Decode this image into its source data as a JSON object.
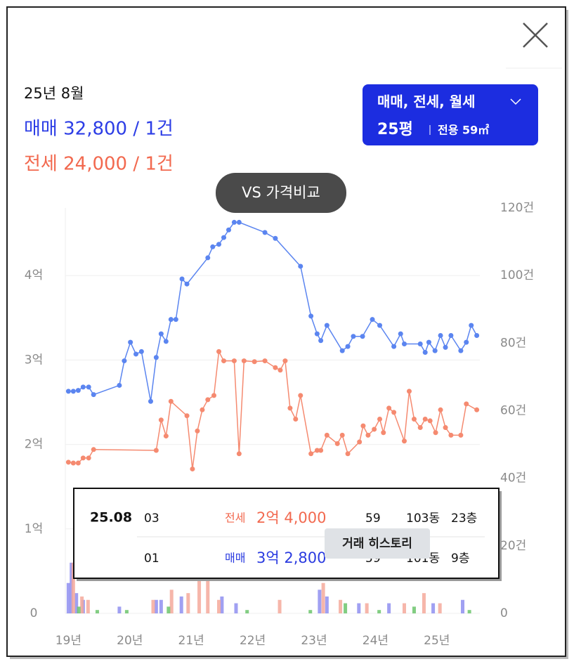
{
  "header": {
    "date": "25년 8월",
    "sale": "매매 32,800 / 1건",
    "jeonse": "전세 24,000 / 1건"
  },
  "filter": {
    "types": "매매, 전세, 월세",
    "size": "25평",
    "area": "전용 59㎡"
  },
  "compare_button": "VS 가격비교",
  "chart_data": {
    "type": "line",
    "xlim": [
      2018.95,
      2025.7
    ],
    "xticks": [
      {
        "value": 2019,
        "label": "19년"
      },
      {
        "value": 2020,
        "label": "20년"
      },
      {
        "value": 2021,
        "label": "21년"
      },
      {
        "value": 2022,
        "label": "22년"
      },
      {
        "value": 2023,
        "label": "23년"
      },
      {
        "value": 2024,
        "label": "24년"
      },
      {
        "value": 2025,
        "label": "25년"
      }
    ],
    "ylim": [
      0,
      4.8
    ],
    "yticks": [
      0,
      {
        "value": 1,
        "label": "1억"
      },
      {
        "value": 2,
        "label": "2억"
      },
      {
        "value": 3,
        "label": "3억"
      },
      {
        "value": 4,
        "label": "4억"
      }
    ],
    "y2lim": [
      0,
      120
    ],
    "y2ticks": [
      0,
      {
        "value": 20,
        "label": "20건"
      },
      {
        "value": 40,
        "label": "40건"
      },
      {
        "value": 60,
        "label": "60건"
      },
      {
        "value": 80,
        "label": "80건"
      },
      {
        "value": 100,
        "label": "100건"
      },
      {
        "value": 120,
        "label": "120건"
      }
    ],
    "grid": true,
    "series": [
      {
        "type": "bar",
        "axis": "y2",
        "color": "#8f8ff0",
        "x": [
          2019.0,
          2019.05,
          2019.13,
          2019.24,
          2019.83,
          2020.43,
          2020.51,
          2020.84,
          2021.5,
          2021.73,
          2023.09,
          2023.21,
          2023.73,
          2024.22,
          2024.94,
          2025.42
        ],
        "values": [
          9,
          15,
          6,
          4,
          2,
          4,
          4,
          5,
          5,
          3,
          7,
          5,
          3,
          3,
          3,
          4
        ]
      },
      {
        "type": "bar",
        "axis": "y2",
        "color": "#f5a99b",
        "x": [
          2019.08,
          2019.22,
          2019.32,
          2020.38,
          2020.68,
          2020.95,
          2021.13,
          2021.27,
          2021.45,
          2022.44,
          2023.15,
          2023.43,
          2023.86,
          2024.47,
          2024.79,
          2025.05
        ],
        "values": [
          15,
          5,
          4,
          4,
          7,
          6,
          11,
          10,
          4,
          4,
          9,
          4,
          3,
          3,
          6,
          3
        ]
      },
      {
        "type": "bar",
        "axis": "y2",
        "color": "#6cc46c",
        "x": [
          2019.17,
          2019.47,
          2019.95,
          2020.63,
          2021.91,
          2022.94,
          2023.51,
          2024.06,
          2024.63,
          2025.53
        ],
        "values": [
          2,
          1,
          1,
          2,
          1,
          1,
          3,
          1,
          2,
          1
        ]
      },
      {
        "color": "#f58a70",
        "x": [
          2019.0,
          2019.08,
          2019.16,
          2019.24,
          2019.33,
          2019.41,
          2020.43,
          2020.51,
          2020.59,
          2020.67,
          2020.93,
          2021.02,
          2021.1,
          2021.18,
          2021.27,
          2021.37,
          2021.45,
          2021.53,
          2021.7,
          2021.78,
          2021.86,
          2022.03,
          2022.2,
          2022.37,
          2022.45,
          2022.53,
          2022.61,
          2022.7,
          2022.78,
          2022.95,
          2023.05,
          2023.11,
          2023.21,
          2023.38,
          2023.46,
          2023.55,
          2023.74,
          2023.8,
          2023.88,
          2023.98,
          2024.07,
          2024.13,
          2024.22,
          2024.3,
          2024.47,
          2024.55,
          2024.63,
          2024.73,
          2024.81,
          2024.89,
          2024.98,
          2025.06,
          2025.14,
          2025.23,
          2025.39,
          2025.48,
          2025.65
        ],
        "values": [
          1.79,
          1.78,
          1.78,
          1.84,
          1.84,
          1.94,
          1.93,
          2.29,
          2.1,
          2.51,
          2.34,
          1.71,
          2.16,
          2.41,
          2.53,
          2.58,
          3.1,
          2.99,
          2.99,
          1.89,
          2.99,
          2.98,
          2.99,
          2.91,
          2.88,
          2.99,
          2.43,
          2.3,
          2.58,
          1.89,
          1.93,
          1.93,
          2.11,
          2.01,
          2.11,
          1.89,
          2.03,
          2.22,
          2.11,
          2.18,
          2.3,
          2.14,
          2.43,
          2.38,
          2.04,
          2.63,
          2.3,
          2.2,
          2.3,
          2.28,
          2.14,
          2.41,
          2.2,
          2.11,
          2.11,
          2.48,
          2.41
        ]
      },
      {
        "color": "#5b85f0",
        "x": [
          2019.0,
          2019.08,
          2019.16,
          2019.24,
          2019.33,
          2019.41,
          2019.83,
          2019.91,
          2020.01,
          2020.1,
          2020.19,
          2020.34,
          2020.43,
          2020.51,
          2020.59,
          2020.67,
          2020.75,
          2020.85,
          2020.93,
          2021.27,
          2021.35,
          2021.45,
          2021.53,
          2021.61,
          2021.7,
          2021.78,
          2022.2,
          2022.37,
          2022.78,
          2022.95,
          2023.05,
          2023.11,
          2023.21,
          2023.46,
          2023.55,
          2023.64,
          2023.79,
          2023.95,
          2024.07,
          2024.3,
          2024.41,
          2024.47,
          2024.73,
          2024.81,
          2024.87,
          2024.97,
          2025.06,
          2025.14,
          2025.23,
          2025.39,
          2025.48,
          2025.56,
          2025.65
        ],
        "values": [
          2.63,
          2.63,
          2.64,
          2.68,
          2.68,
          2.59,
          2.7,
          2.99,
          3.21,
          3.07,
          3.1,
          2.51,
          3.03,
          3.31,
          3.22,
          3.48,
          3.48,
          3.96,
          3.9,
          4.21,
          4.34,
          4.37,
          4.45,
          4.54,
          4.63,
          4.63,
          4.51,
          4.44,
          4.11,
          3.52,
          3.31,
          3.23,
          3.41,
          3.11,
          3.16,
          3.28,
          3.28,
          3.48,
          3.41,
          3.16,
          3.31,
          3.19,
          3.19,
          3.09,
          3.21,
          3.11,
          3.29,
          3.15,
          3.29,
          3.11,
          3.21,
          3.41,
          3.29
        ]
      }
    ]
  },
  "tooltip": {
    "date": "25.08",
    "rows": [
      [
        "03",
        "전세",
        "2억 4,000",
        "59",
        "103동",
        "23층"
      ],
      [
        "01",
        "매매",
        "3억 2,800",
        "59",
        "101동",
        "9층"
      ]
    ]
  },
  "history_button": "거래 히스토리"
}
